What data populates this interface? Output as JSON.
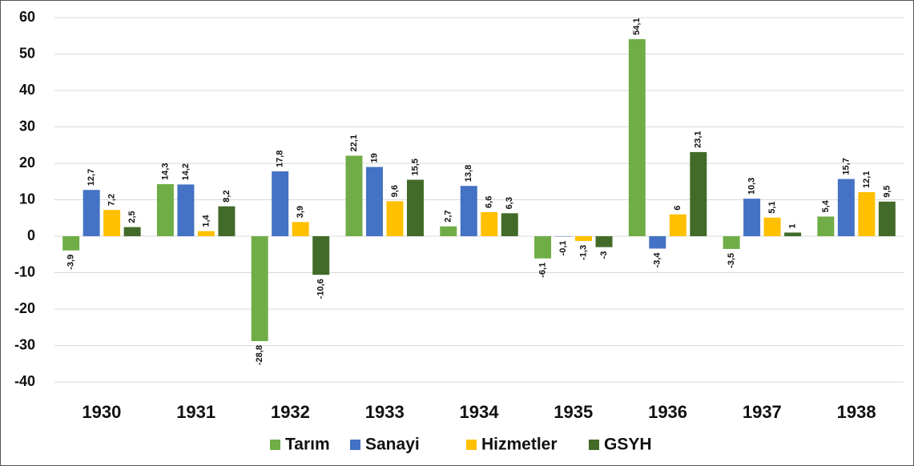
{
  "chart_data": {
    "type": "bar",
    "categories": [
      "1930",
      "1931",
      "1932",
      "1933",
      "1934",
      "1935",
      "1936",
      "1937",
      "1938"
    ],
    "series": [
      {
        "name": "Tarım",
        "color": "#70ad47",
        "values": [
          -3.9,
          14.3,
          -28.8,
          22.1,
          2.7,
          -6.1,
          54.1,
          -3.5,
          5.4
        ],
        "value_labels": [
          "-3,9",
          "14,3",
          "-28,8",
          "22,1",
          "2,7",
          "-6,1",
          "54,1",
          "-3,5",
          "5,4"
        ]
      },
      {
        "name": "Sanayi",
        "color": "#4472c4",
        "values": [
          12.7,
          14.2,
          17.8,
          19,
          13.8,
          -0.1,
          -3.4,
          10.3,
          15.7
        ],
        "value_labels": [
          "12,7",
          "14,2",
          "17,8",
          "19",
          "13,8",
          "-0,1",
          "-3,4",
          "10,3",
          "15,7"
        ]
      },
      {
        "name": "Hizmetler",
        "color": "#ffc000",
        "values": [
          7.2,
          1.4,
          3.9,
          9.6,
          6.6,
          -1.3,
          6,
          5.1,
          12.1
        ],
        "value_labels": [
          "7,2",
          "1,4",
          "3,9",
          "9,6",
          "6,6",
          "-1,3",
          "6",
          "5,1",
          "12,1"
        ]
      },
      {
        "name": "GSYH",
        "color": "#426b29",
        "values": [
          2.5,
          8.2,
          -10.6,
          15.5,
          6.3,
          -3,
          23.1,
          1,
          9.5
        ],
        "value_labels": [
          "2,5",
          "8,2",
          "-10,6",
          "15,5",
          "6,3",
          "-3",
          "23,1",
          "1",
          "9,5"
        ]
      }
    ],
    "ylim": [
      -40,
      60
    ],
    "yticks": [
      -40,
      -30,
      -20,
      -10,
      0,
      10,
      20,
      30,
      40,
      50,
      60
    ],
    "grid": true,
    "legend": "bottom"
  }
}
